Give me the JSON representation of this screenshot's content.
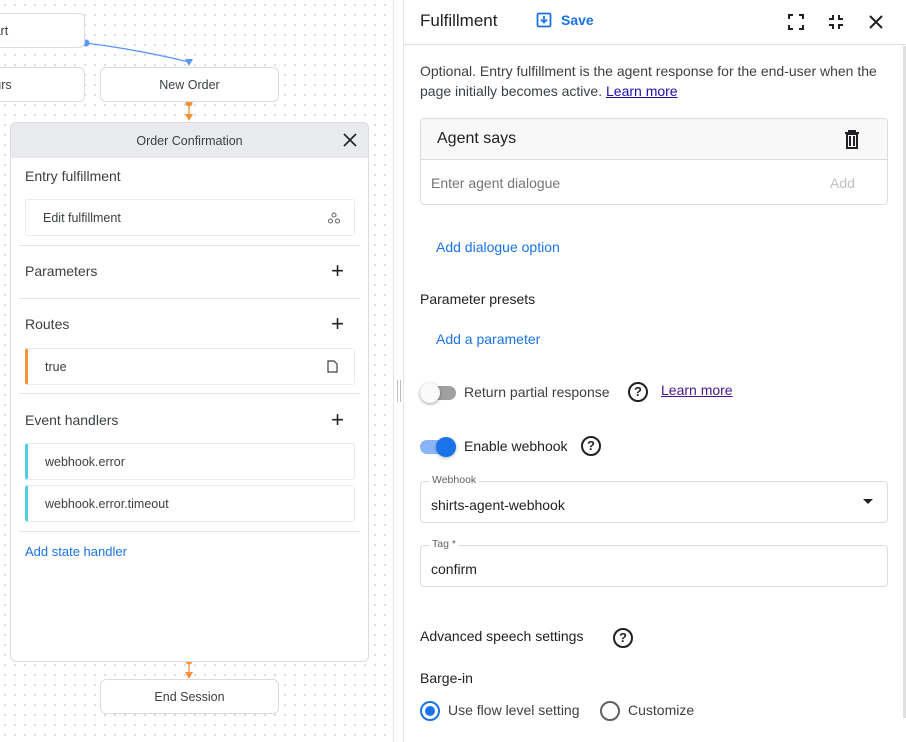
{
  "canvas": {
    "nodes": {
      "start": "Start",
      "hours": "Hours",
      "new_order": "New Order",
      "end_session": "End Session"
    },
    "page_card": {
      "title": "Order Confirmation",
      "entry_fulfillment": {
        "title": "Entry fulfillment",
        "item": "Edit fulfillment"
      },
      "parameters": {
        "title": "Parameters"
      },
      "routes": {
        "title": "Routes",
        "items": [
          "true"
        ]
      },
      "event_handlers": {
        "title": "Event handlers",
        "items": [
          "webhook.error",
          "webhook.error.timeout"
        ]
      },
      "add_state_handler": "Add state handler"
    },
    "colors": {
      "route": "#f4913a",
      "event": "#4ecde6",
      "edge": "#5e97f6"
    }
  },
  "panel": {
    "title": "Fulfillment",
    "save_label": "Save",
    "description": "Optional. Entry fulfillment is the agent response for the end-user when the page initially becomes active.",
    "learn_more": "Learn more",
    "agent_says": {
      "title": "Agent says",
      "placeholder": "Enter agent dialogue",
      "add": "Add"
    },
    "add_dialogue_option": "Add dialogue option",
    "parameter_presets": {
      "title": "Parameter presets",
      "add": "Add a parameter"
    },
    "return_partial": {
      "label": "Return partial response",
      "enabled": false,
      "learn_more": "Learn more"
    },
    "enable_webhook": {
      "label": "Enable webhook",
      "enabled": true
    },
    "webhook": {
      "label": "Webhook",
      "value": "shirts-agent-webhook"
    },
    "tag": {
      "label": "Tag *",
      "value": "confirm"
    },
    "advanced_speech": {
      "title": "Advanced speech settings"
    },
    "barge_in": {
      "title": "Barge-in",
      "options": [
        "Use flow level setting",
        "Customize"
      ],
      "selected": "Use flow level setting"
    },
    "accent": "#1a73e8"
  }
}
